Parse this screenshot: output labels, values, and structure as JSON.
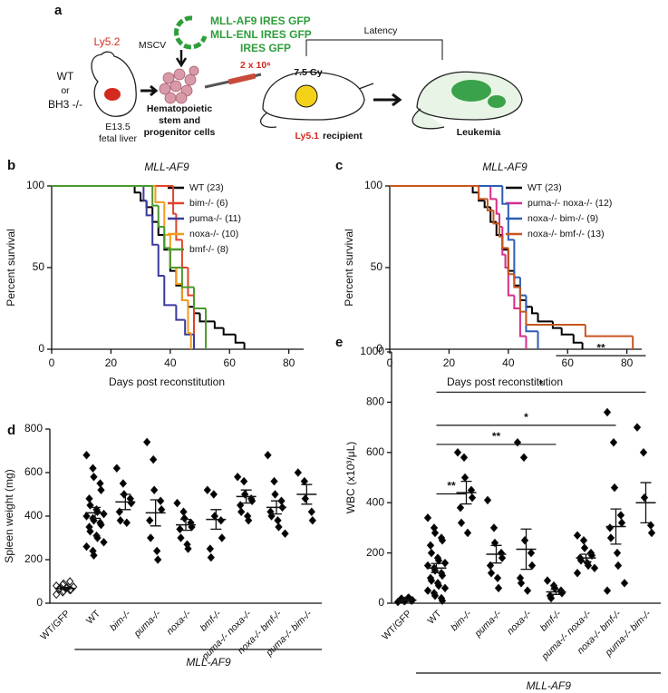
{
  "panel_a": {
    "label": "a",
    "donor_marker": "Ly5.2",
    "donor_line1": "WT",
    "donor_line2": "or",
    "donor_line3": "BH3 -/-",
    "stage": "E13.5",
    "tissue": "fetal liver",
    "vector": "MSCV",
    "construct1": "MLL-AF9 IRES GFP",
    "construct2": "MLL-ENL IRES GFP",
    "construct3": "IRES GFP",
    "cells_line1": "Hematopoietic",
    "cells_line2": "stem and",
    "cells_line3": "progenitor cells",
    "dose": "2 x 10⁶",
    "irradiation": "7.5 Gy",
    "latency": "Latency",
    "recipient_marker": "Ly5.1",
    "recipient": "recipient",
    "outcome": "Leukemia"
  },
  "chart_data": [
    {
      "type": "step",
      "panel": "b",
      "title": "MLL-AF9",
      "x_label": "Days post reconstitution",
      "y_label": "Percent survival",
      "xlim": [
        0,
        85
      ],
      "xticks": [
        0,
        20,
        40,
        60,
        80
      ],
      "ylim": [
        0,
        100
      ],
      "yticks": [
        0,
        50,
        100
      ],
      "legend": "upper right",
      "series": [
        {
          "name": "WT (23)",
          "color": "#000000",
          "x": [
            0,
            28,
            30,
            32,
            34,
            36,
            38,
            40,
            42,
            44,
            46,
            48,
            50,
            55,
            58,
            62,
            65
          ],
          "values": [
            100,
            96,
            91,
            87,
            78,
            70,
            61,
            48,
            39,
            30,
            26,
            22,
            17,
            13,
            9,
            4,
            0
          ]
        },
        {
          "name": "bim-/- (6)",
          "color": "#e0442b",
          "x": [
            0,
            41,
            42,
            44,
            46,
            48
          ],
          "values": [
            100,
            83,
            67,
            50,
            33,
            0
          ]
        },
        {
          "name": "puma-/- (11)",
          "color": "#3a3a9c",
          "x": [
            0,
            31,
            32,
            34,
            36,
            38,
            42,
            45,
            48
          ],
          "values": [
            100,
            91,
            82,
            64,
            45,
            27,
            18,
            9,
            0
          ]
        },
        {
          "name": "noxa-/- (10)",
          "color": "#f39c1e",
          "x": [
            0,
            35,
            38,
            40,
            42,
            44,
            46,
            47
          ],
          "values": [
            100,
            90,
            70,
            50,
            40,
            30,
            10,
            0
          ]
        },
        {
          "name": "bmf-/- (8)",
          "color": "#4a9a2e",
          "x": [
            0,
            34,
            36,
            38,
            40,
            44,
            48,
            52
          ],
          "values": [
            100,
            88,
            75,
            62,
            50,
            38,
            25,
            0
          ]
        }
      ]
    },
    {
      "type": "step",
      "panel": "c",
      "title": "MLL-AF9",
      "x_label": "Days post reconstitution",
      "y_label": "Percent survival",
      "xlim": [
        0,
        85
      ],
      "xticks": [
        0,
        20,
        40,
        60,
        80
      ],
      "ylim": [
        0,
        100
      ],
      "yticks": [
        0,
        50,
        100
      ],
      "legend": "upper right",
      "series": [
        {
          "name": "WT (23)",
          "color": "#000000",
          "x": [
            0,
            28,
            30,
            32,
            34,
            36,
            38,
            40,
            42,
            44,
            46,
            48,
            50,
            55,
            58,
            62,
            65
          ],
          "values": [
            100,
            96,
            91,
            87,
            78,
            70,
            61,
            48,
            39,
            30,
            26,
            22,
            17,
            13,
            9,
            4,
            0
          ]
        },
        {
          "name": "puma-/- noxa-/- (12)",
          "color": "#d62d8c",
          "x": [
            0,
            34,
            36,
            37,
            38,
            39,
            40,
            42,
            44,
            46
          ],
          "values": [
            100,
            92,
            83,
            75,
            58,
            50,
            33,
            25,
            8,
            0
          ]
        },
        {
          "name": "noxa-/- bim-/- (9)",
          "color": "#2d5db5",
          "x": [
            0,
            38,
            40,
            42,
            44,
            46,
            50
          ],
          "values": [
            100,
            89,
            67,
            44,
            33,
            11,
            0
          ]
        },
        {
          "name": "noxa-/- bmf-/- (13)",
          "color": "#c8561e",
          "x": [
            0,
            30,
            33,
            35,
            37,
            38,
            40,
            42,
            44,
            46,
            66,
            82
          ],
          "values": [
            100,
            92,
            85,
            77,
            69,
            62,
            46,
            38,
            23,
            15,
            8,
            0
          ]
        }
      ]
    },
    {
      "type": "dot",
      "panel": "d",
      "y_label": "Spleen weight (mg)",
      "group_label": "MLL-AF9",
      "ylim": [
        0,
        800
      ],
      "yticks": [
        0,
        200,
        400,
        600,
        800
      ],
      "categories": [
        "WT/GFP",
        "WT",
        "bim-/-",
        "puma-/-",
        "noxa-/-",
        "bmf-/-",
        "puma-/- noxa-/-",
        "noxa-/- bmf-/-",
        "puma-/- bim-/-"
      ],
      "marker_fill": [
        "none",
        "#000000",
        "#000000",
        "#000000",
        "#000000",
        "#000000",
        "#000000",
        "#000000",
        "#000000"
      ],
      "values": [
        [
          40,
          50,
          55,
          60,
          62,
          65,
          68,
          70,
          72,
          75,
          80,
          85,
          90,
          100
        ],
        [
          680,
          620,
          580,
          550,
          520,
          480,
          450,
          430,
          420,
          410,
          400,
          390,
          380,
          370,
          360,
          350,
          330,
          310,
          300,
          280,
          260,
          240,
          220
        ],
        [
          620,
          550,
          500,
          480,
          460,
          420,
          380,
          370
        ],
        [
          740,
          660,
          520,
          470,
          430,
          380,
          300,
          240,
          200
        ],
        [
          460,
          420,
          390,
          370,
          350,
          340,
          300,
          270,
          250
        ],
        [
          520,
          500,
          400,
          380,
          300,
          250,
          210
        ],
        [
          580,
          560,
          500,
          480,
          470,
          450,
          420,
          400,
          380
        ],
        [
          680,
          560,
          500,
          470,
          440,
          420,
          400,
          380,
          350,
          320
        ],
        [
          600,
          560,
          480,
          420,
          380
        ]
      ],
      "means": [
        68,
        415,
        465,
        415,
        360,
        385,
        490,
        440,
        500
      ],
      "sems": [
        5,
        25,
        35,
        60,
        25,
        45,
        30,
        30,
        45
      ]
    },
    {
      "type": "dot",
      "panel": "e",
      "y_label": "WBC (x10³/μL)",
      "group_label": "MLL-AF9",
      "ylim": [
        0,
        1000
      ],
      "yticks": [
        0,
        200,
        400,
        600,
        800,
        1000
      ],
      "categories": [
        "WT/GFP",
        "WT",
        "bim-/-",
        "puma-/-",
        "noxa-/-",
        "bmf-/-",
        "puma-/- noxa-/-",
        "noxa-/- bmf-/-",
        "puma-/- bim-/-"
      ],
      "marker_fill": [
        "#000000",
        "#000000",
        "#000000",
        "#000000",
        "#000000",
        "#000000",
        "#000000",
        "#000000",
        "#000000"
      ],
      "values": [
        [
          5,
          8,
          10,
          10,
          12,
          15,
          18,
          20,
          22
        ],
        [
          340,
          300,
          280,
          260,
          250,
          230,
          200,
          180,
          170,
          160,
          150,
          140,
          130,
          120,
          110,
          100,
          90,
          80,
          70,
          60,
          50,
          40,
          30,
          20,
          10
        ],
        [
          600,
          580,
          500,
          450,
          420,
          380,
          320,
          280
        ],
        [
          410,
          300,
          240,
          200,
          180,
          150,
          120,
          100,
          60
        ],
        [
          640,
          580,
          250,
          200,
          150,
          100,
          80,
          50
        ],
        [
          90,
          70,
          60,
          50,
          40,
          30,
          20
        ],
        [
          270,
          250,
          220,
          200,
          190,
          180,
          170,
          160,
          150,
          140,
          120
        ],
        [
          760,
          640,
          460,
          350,
          320,
          300,
          260,
          200,
          150,
          80,
          50
        ],
        [
          700,
          600,
          420,
          310,
          280
        ]
      ],
      "means": [
        12,
        140,
        440,
        195,
        215,
        45,
        180,
        305,
        400
      ],
      "sems": [
        2,
        18,
        45,
        35,
        80,
        10,
        15,
        70,
        80
      ],
      "comparisons": [
        {
          "from": "WT",
          "to": "bim-/-",
          "label": "**",
          "y": 435
        },
        {
          "from": "WT",
          "to": "bmf-/-",
          "label": "**",
          "y": 632
        },
        {
          "from": "WT",
          "to": "noxa-/- bmf-/-",
          "label": "*",
          "y": 708
        },
        {
          "from": "WT",
          "to": "puma-/- bim-/-",
          "label": "*",
          "y": 840
        },
        {
          "from": "bmf-/-",
          "to": "puma-/- bim-/-",
          "label": "**",
          "y": 985
        }
      ]
    }
  ]
}
